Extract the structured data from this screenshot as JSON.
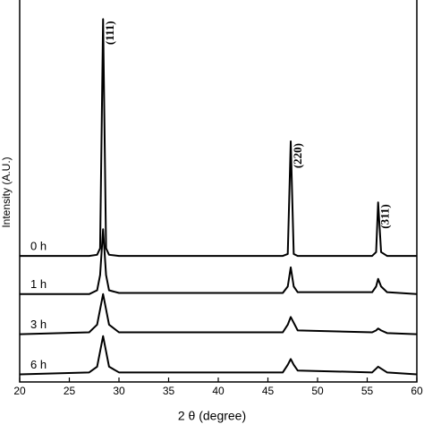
{
  "chart_data": {
    "type": "line",
    "xlabel": "2 θ (degree)",
    "ylabel": "Intensity (A.U.)",
    "annotations": [
      "(111)",
      "(220)",
      "(311)"
    ],
    "x": [
      20,
      27,
      27.8,
      28.1,
      28.4,
      28.7,
      29,
      30,
      46.5,
      47,
      47.3,
      47.6,
      48,
      55.5,
      55.9,
      56.1,
      56.4,
      57,
      60
    ],
    "series": [
      {
        "name": "0 h",
        "color": "#000000",
        "values": [
          33,
          33,
          33.3,
          35,
          95,
          35,
          33.3,
          33,
          33,
          33.5,
          63,
          33.5,
          33,
          33,
          34,
          47,
          34,
          33,
          33
        ]
      },
      {
        "name": "1 h",
        "color": "#000000",
        "values": [
          23,
          23,
          24,
          28,
          40,
          28,
          24,
          23.3,
          23.3,
          25,
          30,
          25,
          23.5,
          23.5,
          25,
          27,
          25,
          23.5,
          23
        ]
      },
      {
        "name": "3 h",
        "color": "#000000",
        "values": [
          12.5,
          13,
          15,
          19,
          23,
          19,
          15,
          13,
          13,
          15,
          17,
          15.5,
          13.5,
          13,
          13.5,
          14,
          13.5,
          12.8,
          12.5
        ]
      },
      {
        "name": "6 h",
        "color": "#000000",
        "values": [
          2,
          2.5,
          4,
          8,
          12,
          8,
          4,
          2.5,
          2.5,
          4.5,
          6,
          4.5,
          3,
          2.5,
          3.5,
          4,
          3.5,
          2.5,
          2
        ]
      }
    ],
    "xlim": [
      20,
      60
    ],
    "xticks": [
      20,
      25,
      30,
      35,
      40,
      45,
      50,
      55,
      60
    ],
    "ylim": [
      0,
      100
    ]
  }
}
